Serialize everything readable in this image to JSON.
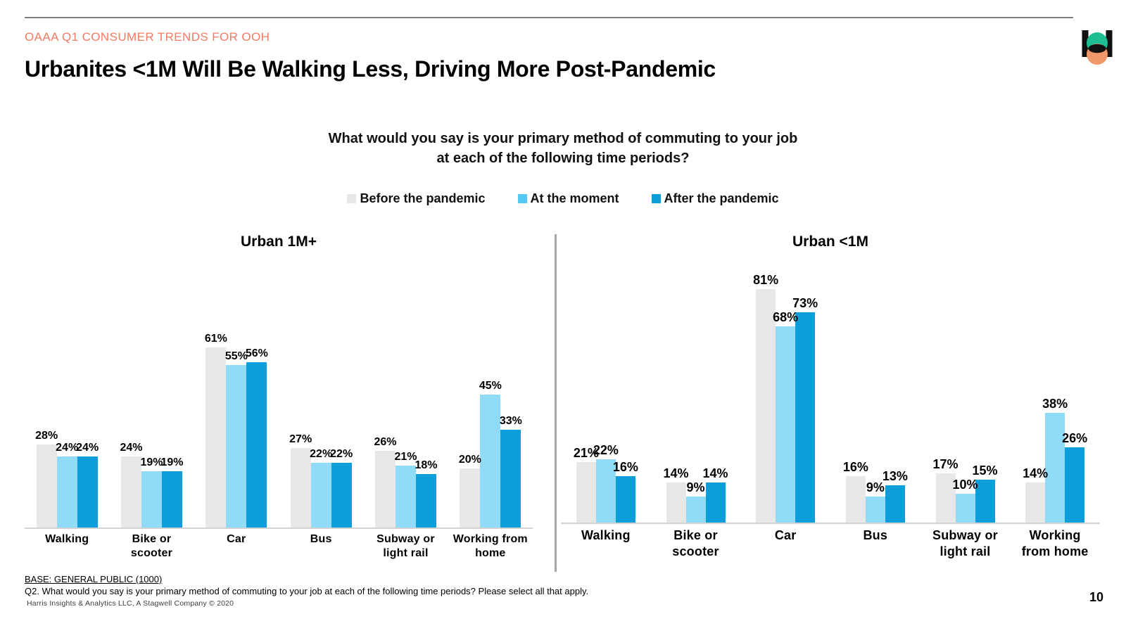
{
  "header": {
    "eyebrow": "OAAA Q1 CONSUMER TRENDS FOR OOH",
    "title": "Urbanites <1M Will Be Walking Less, Driving More Post-Pandemic"
  },
  "question": {
    "line1": "What would you say is your primary method of commuting to your job",
    "line2": "at each of the following time periods?"
  },
  "legend": {
    "items": [
      {
        "label": "Before the pandemic",
        "color": "#E7E7E7"
      },
      {
        "label": "At the moment",
        "color": "#54C8F3"
      },
      {
        "label": "After the pandemic",
        "color": "#0C9DDB"
      }
    ],
    "position": "top-center"
  },
  "chart_data": [
    {
      "type": "bar",
      "title": "Urban 1M+",
      "unit": "%",
      "categories": [
        "Walking",
        "Bike or scooter",
        "Car",
        "Bus",
        "Subway or light rail",
        "Working from home"
      ],
      "category_lines": [
        [
          "Walking"
        ],
        [
          "Bike or",
          "scooter"
        ],
        [
          "Car"
        ],
        [
          "Bus"
        ],
        [
          "Subway  or",
          "light rail"
        ],
        [
          "Working from",
          "home"
        ]
      ],
      "series": [
        {
          "name": "Before the pandemic",
          "color": "#E7E7E7",
          "values": [
            28,
            24,
            61,
            27,
            26,
            20
          ]
        },
        {
          "name": "At the moment",
          "color": "#90DCF8",
          "values": [
            24,
            19,
            55,
            22,
            21,
            45
          ]
        },
        {
          "name": "After the pandemic",
          "color": "#0C9DDB",
          "values": [
            24,
            19,
            56,
            22,
            18,
            33
          ]
        }
      ],
      "ylim": [
        0,
        90
      ],
      "grid": false,
      "value_axis_visible": false,
      "data_labels": true
    },
    {
      "type": "bar",
      "title": "Urban <1M",
      "unit": "%",
      "categories": [
        "Walking",
        "Bike or scooter",
        "Car",
        "Bus",
        "Subway or light rail",
        "Working from home"
      ],
      "category_lines": [
        [
          "Walking"
        ],
        [
          "Bike or",
          "scooter"
        ],
        [
          "Car"
        ],
        [
          "Bus"
        ],
        [
          "Subway or",
          "light rail"
        ],
        [
          "Working",
          "from home"
        ]
      ],
      "series": [
        {
          "name": "Before the pandemic",
          "color": "#E7E7E7",
          "values": [
            21,
            14,
            81,
            16,
            17,
            14
          ]
        },
        {
          "name": "At the moment",
          "color": "#90DCF8",
          "values": [
            22,
            9,
            68,
            9,
            10,
            38
          ]
        },
        {
          "name": "After the pandemic",
          "color": "#0C9DDB",
          "values": [
            16,
            14,
            73,
            13,
            15,
            26
          ]
        }
      ],
      "ylim": [
        0,
        90
      ],
      "grid": false,
      "value_axis_visible": false,
      "data_labels": true
    }
  ],
  "footer": {
    "base": "BASE: GENERAL PUBLIC (1000)",
    "q2": "Q2. What would you say is your primary method of commuting to your job at each of the following time periods? Please select all that apply.",
    "copyright": "Harris Insights & Analytics LLC, A Stagwell Company © 2020",
    "page": "10"
  },
  "colors": {
    "accent_coral": "#F27B62",
    "bar_before": "#E7E7E7",
    "bar_moment": "#90DCF8",
    "bar_after": "#0C9DDB",
    "legend_moment": "#54C8F3",
    "divider": "#A6A6A6",
    "axis_line": "#D2D2D2",
    "top_rule": "#7F7F7F",
    "logo_green": "#1CBE92",
    "logo_orange": "#F0976B",
    "logo_black": "#111111"
  }
}
